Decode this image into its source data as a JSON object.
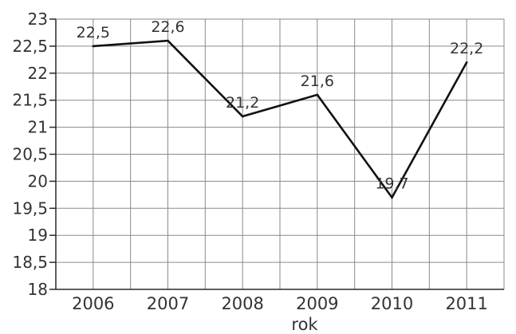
{
  "chart_data": {
    "type": "line",
    "title": "",
    "xlabel": "rok",
    "ylabel": "",
    "categories": [
      "2006",
      "2007",
      "2008",
      "2009",
      "2010",
      "2011"
    ],
    "series": [
      {
        "values": [
          22.5,
          22.6,
          21.2,
          21.6,
          19.7,
          22.2
        ]
      }
    ],
    "data_labels": [
      "22,5",
      "22,6",
      "21,2",
      "21,6",
      "19,7",
      "22,2"
    ],
    "y_ticks": [
      18,
      18.5,
      19,
      19.5,
      20,
      20.5,
      21,
      21.5,
      22,
      22.5,
      23
    ],
    "y_tick_labels": [
      "18",
      "18,5",
      "19",
      "19,5",
      "20",
      "20,5",
      "21",
      "21,5",
      "22",
      "22,5",
      "23"
    ],
    "ylim": [
      18,
      23
    ],
    "grid": true,
    "legend": "none",
    "colors": {
      "line": "#111111",
      "grid": "#8a8a8a"
    }
  }
}
